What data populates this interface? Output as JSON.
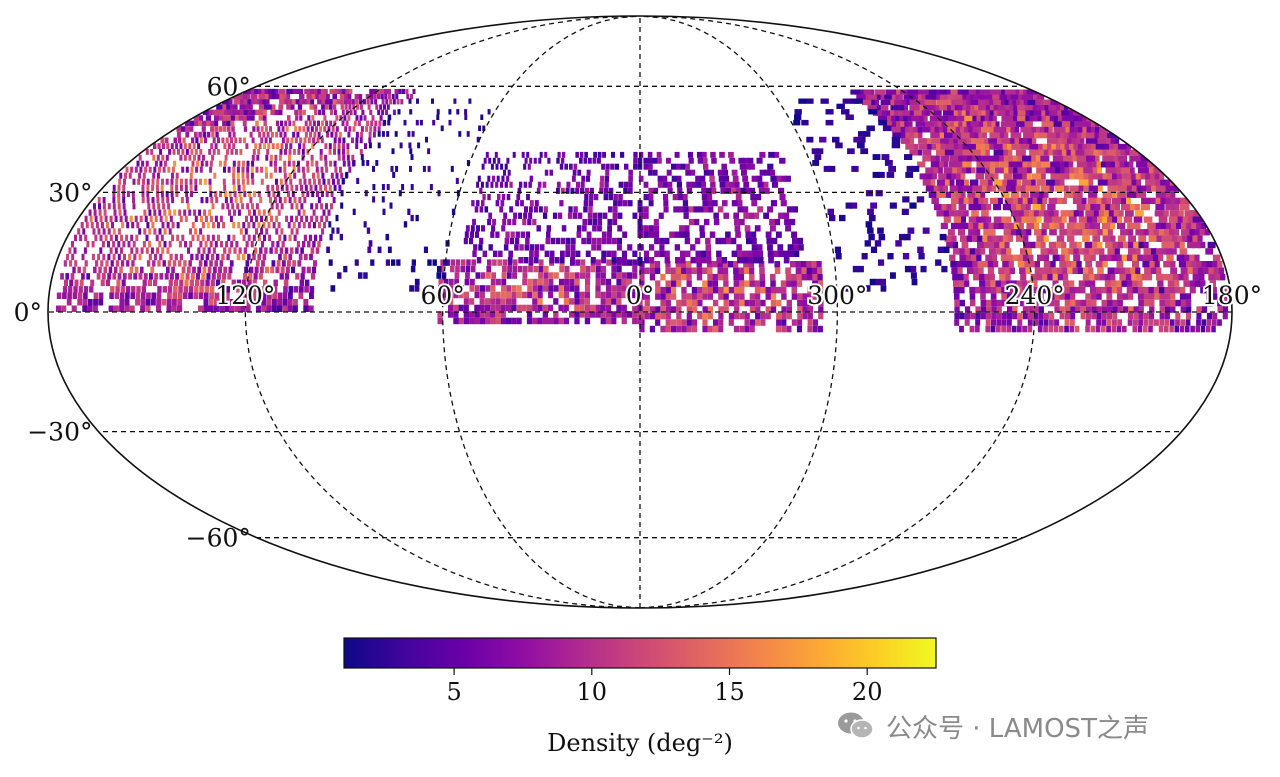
{
  "chart_data": {
    "type": "heatmap",
    "projection": "mollweide",
    "title": "",
    "colormap": "plasma",
    "grid": true,
    "lon_tick_labels": [
      {
        "lon": 120,
        "text": "120°"
      },
      {
        "lon": 60,
        "text": "60°"
      },
      {
        "lon": 0,
        "text": "0°"
      },
      {
        "lon": 300,
        "text": "300°"
      },
      {
        "lon": 240,
        "text": "240°"
      },
      {
        "lon": 180,
        "text": "180°"
      }
    ],
    "lat_tick_labels": [
      {
        "lat": 60,
        "text": "60°"
      },
      {
        "lat": 30,
        "text": "30°"
      },
      {
        "lat": 0,
        "text": "0°"
      },
      {
        "lat": -30,
        "text": "−30°"
      },
      {
        "lat": -60,
        "text": "−60°"
      }
    ],
    "colorbar": {
      "label": "Density (deg⁻²)",
      "range": [
        1,
        22.5
      ],
      "ticks": [
        5,
        10,
        15,
        20
      ],
      "tick_labels": [
        "5",
        "10",
        "15",
        "20"
      ]
    },
    "density_regions": [
      {
        "lon_range": [
          100,
          178
        ],
        "lat_range": [
          0,
          58
        ],
        "level": 9,
        "peak": 18
      },
      {
        "lon_range": [
          182,
          265
        ],
        "lat_range": [
          -5,
          58
        ],
        "level": 9,
        "peak": 18
      },
      {
        "lon_range": [
          305,
          360
        ],
        "lat_range": [
          -5,
          12
        ],
        "level": 10,
        "peak": 16
      },
      {
        "lon_range": [
          0,
          62
        ],
        "lat_range": [
          -3,
          12
        ],
        "level": 9,
        "peak": 15
      },
      {
        "lon_range": [
          310,
          360
        ],
        "lat_range": [
          12,
          40
        ],
        "level": 6,
        "peak": 11
      },
      {
        "lon_range": [
          0,
          55
        ],
        "lat_range": [
          12,
          40
        ],
        "level": 5,
        "peak": 10
      },
      {
        "lon_range": [
          60,
          100
        ],
        "lat_range": [
          5,
          55
        ],
        "level": 2,
        "peak": 4
      },
      {
        "lon_range": [
          265,
          300
        ],
        "lat_range": [
          5,
          55
        ],
        "level": 2,
        "peak": 5
      }
    ]
  },
  "watermark": {
    "text": "公众号 · LAMOST之声",
    "icon": "wechat-icon"
  }
}
